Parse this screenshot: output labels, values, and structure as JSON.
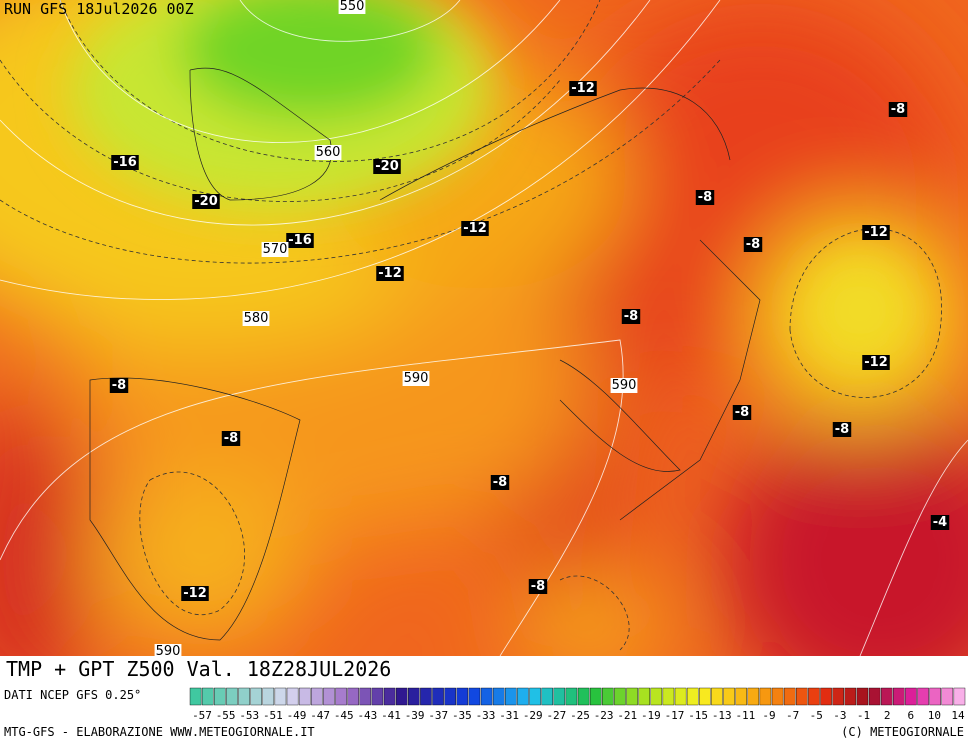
{
  "header": {
    "run": "RUN GFS 18Jul2026 00Z",
    "title": "TMP + GPT Z500 Val. 18Z28JUL2026"
  },
  "footer": {
    "source": "DATI NCEP GFS 0.25°",
    "credit": "MTG-GFS - ELABORAZIONE WWW.METEOGIORNALE.IT",
    "copyright": "(C) METEOGIORNALE"
  },
  "colorbar": {
    "labels": [
      -57,
      -55,
      -53,
      -51,
      -49,
      -47,
      -45,
      -43,
      -41,
      -39,
      -37,
      -35,
      -33,
      -31,
      -29,
      -27,
      -25,
      -23,
      -21,
      -19,
      -17,
      -15,
      -13,
      -11,
      -9,
      -7,
      -5,
      -3,
      -1,
      2,
      6,
      10,
      14
    ]
  },
  "temperature_labels": [
    -12,
    -8,
    -16,
    -20,
    -20,
    -8,
    -12,
    -16,
    -12,
    -8,
    -12,
    -8,
    -12,
    -8,
    -8,
    -8,
    -8,
    -8,
    -4,
    -8,
    -12
  ],
  "height_labels": [
    550,
    560,
    570,
    580,
    590,
    590,
    590
  ]
}
